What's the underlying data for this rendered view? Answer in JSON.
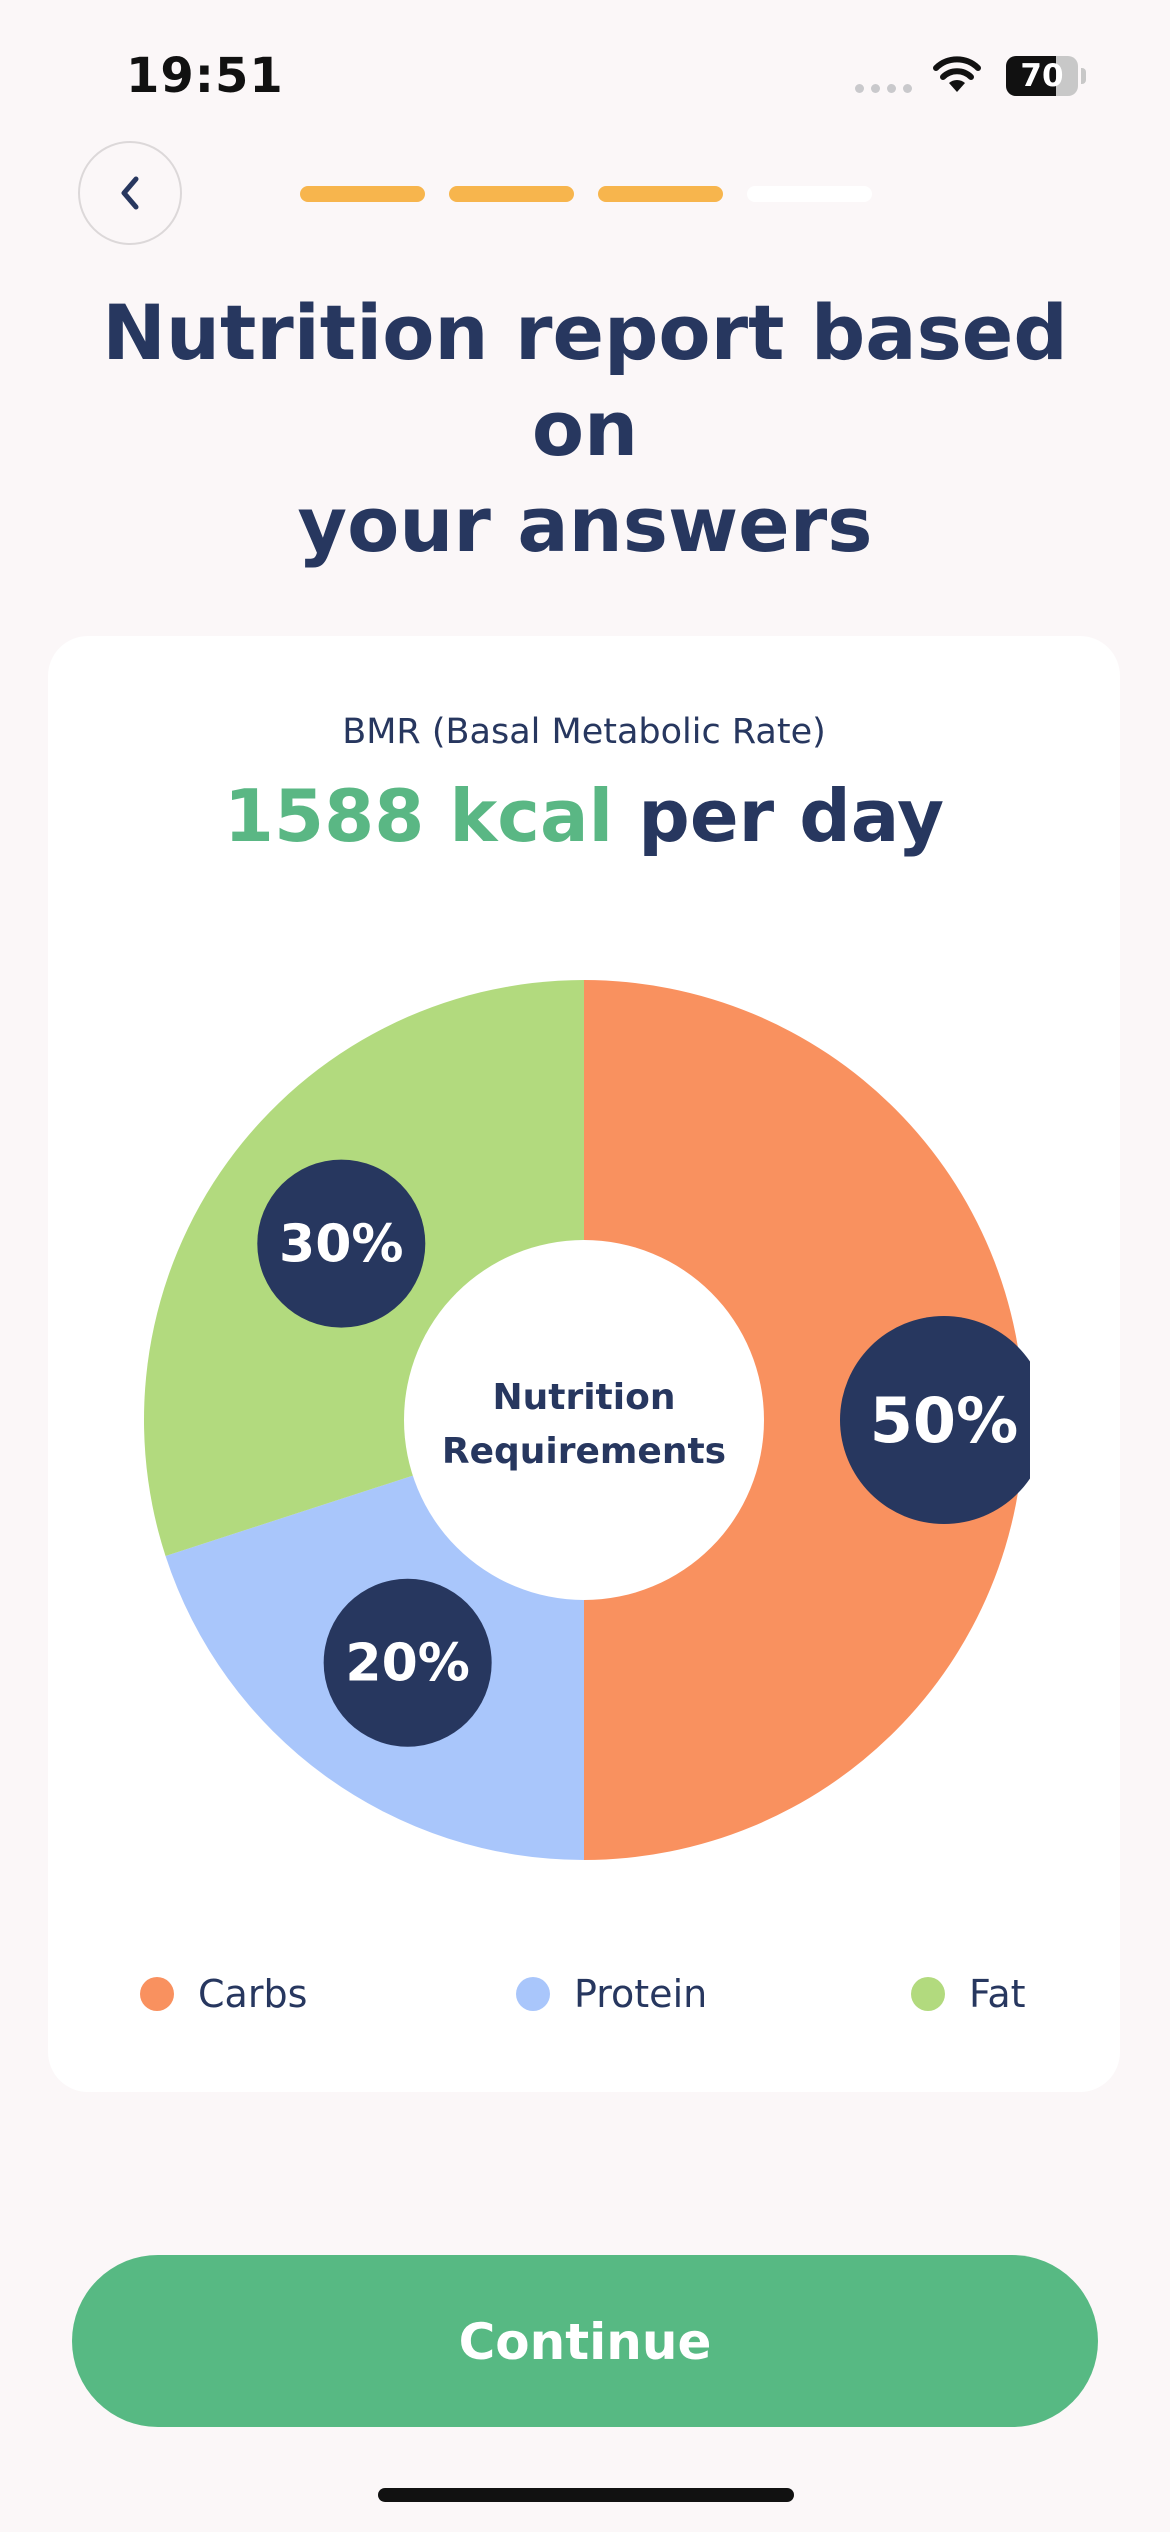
{
  "status_bar": {
    "time": "19:51",
    "battery_level": "70",
    "battery_fraction": 0.7
  },
  "header": {
    "back_icon": "chevron-left-icon",
    "progress_steps": {
      "total": 4,
      "completed": 3
    },
    "title_line1": "Nutrition report based on",
    "title_line2": "your answers"
  },
  "bmr": {
    "label": "BMR (Basal Metabolic Rate)",
    "value": "1588",
    "unit": "kcal",
    "suffix": "per day"
  },
  "chart_data": {
    "type": "pie",
    "title": "",
    "center_label_line1": "Nutrition",
    "center_label_line2": "Requirements",
    "categories": [
      "Carbs",
      "Protein",
      "Fat"
    ],
    "values": [
      50,
      20,
      30
    ],
    "labels": [
      "50%",
      "20%",
      "30%"
    ],
    "colors": [
      "#f9915f",
      "#a9c6fb",
      "#b2da7e"
    ]
  },
  "legend": [
    {
      "label": "Carbs",
      "color": "#f9915f"
    },
    {
      "label": "Protein",
      "color": "#a9c6fb"
    },
    {
      "label": "Fat",
      "color": "#b2da7e"
    }
  ],
  "colors": {
    "accent_green": "#57b983",
    "navy": "#27375f",
    "progress_active": "#f7b54d",
    "progress_inactive": "#ffffff",
    "background": "#fbf7f8"
  },
  "continue_button": {
    "label": "Continue"
  }
}
